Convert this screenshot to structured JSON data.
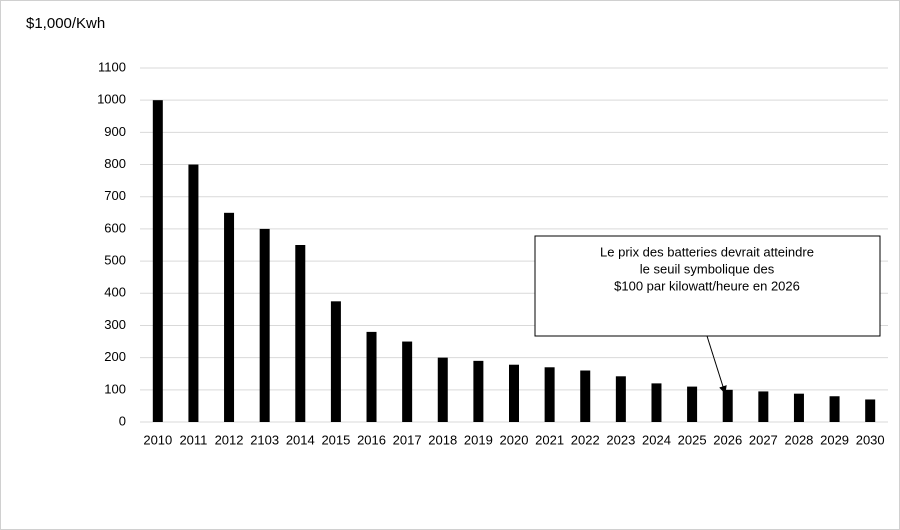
{
  "chart_data": {
    "type": "bar",
    "y_axis_label": "$1,000/Kwh",
    "categories": [
      "2010",
      "2011",
      "2012",
      "2103",
      "2014",
      "2015",
      "2016",
      "2017",
      "2018",
      "2019",
      "2020",
      "2021",
      "2022",
      "2023",
      "2024",
      "2025",
      "2026",
      "2027",
      "2028",
      "2029",
      "2030"
    ],
    "values": [
      1000,
      800,
      650,
      600,
      550,
      375,
      280,
      250,
      200,
      190,
      178,
      170,
      160,
      142,
      120,
      110,
      100,
      95,
      88,
      80,
      70
    ],
    "color": "#000000",
    "ylim": [
      0,
      1100
    ],
    "yticks": [
      0,
      100,
      200,
      300,
      400,
      500,
      600,
      700,
      800,
      900,
      1000,
      1100
    ],
    "grid": true,
    "annotation": [
      "Le prix des batteries devrait atteindre",
      "le seuil symbolique des",
      "$100 par kilowatt/heure en 2026"
    ]
  }
}
